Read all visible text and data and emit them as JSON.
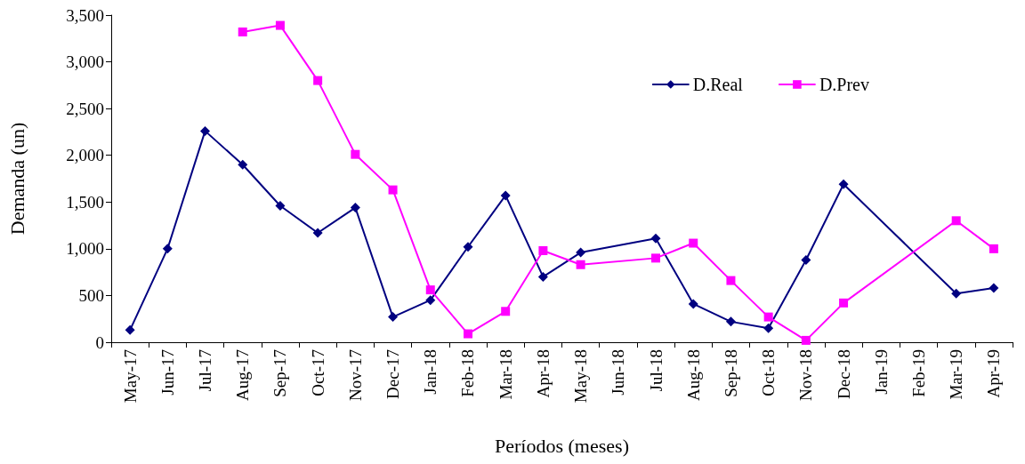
{
  "chart_data": {
    "type": "line",
    "xlabel": "Períodos (meses)",
    "ylabel": "Demanda (un)",
    "categories": [
      "May-17",
      "Jun-17",
      "Jul-17",
      "Aug-17",
      "Sep-17",
      "Oct-17",
      "Nov-17",
      "Dec-17",
      "Jan-18",
      "Feb-18",
      "Mar-18",
      "Apr-18",
      "May-18",
      "Jun-18",
      "Jul-18",
      "Aug-18",
      "Sep-18",
      "Oct-18",
      "Nov-18",
      "Dec-18",
      "Jan-19",
      "Feb-19",
      "Mar-19",
      "Apr-19"
    ],
    "series": [
      {
        "name": "D.Real",
        "color": "#000080",
        "marker": "diamond",
        "values": [
          130,
          1000,
          2260,
          1900,
          1460,
          1170,
          1440,
          270,
          450,
          1020,
          1570,
          700,
          960,
          null,
          1110,
          410,
          220,
          150,
          880,
          1690,
          null,
          null,
          520,
          580
        ]
      },
      {
        "name": "D.Prev",
        "color": "#ff00ff",
        "marker": "square",
        "values": [
          null,
          null,
          null,
          3320,
          3390,
          2800,
          2010,
          1630,
          560,
          90,
          330,
          980,
          830,
          null,
          900,
          1060,
          660,
          270,
          20,
          420,
          null,
          null,
          1300,
          1000
        ]
      }
    ],
    "ylim": [
      0,
      3500
    ],
    "yticks": [
      0,
      500,
      {
        "value": 1000,
        "label": "1,000"
      },
      {
        "value": 1500,
        "label": "1,500"
      },
      {
        "value": 2000,
        "label": "2,000"
      },
      {
        "value": 2500,
        "label": "2,500"
      },
      {
        "value": 3000,
        "label": "3,000"
      },
      {
        "value": 3500,
        "label": "3,500"
      }
    ],
    "grid": false,
    "legend": "top right",
    "line_style": "solid"
  }
}
